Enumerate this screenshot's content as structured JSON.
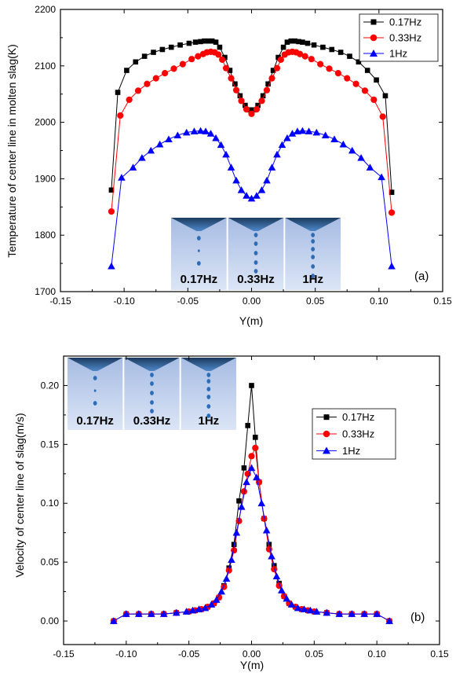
{
  "chart_data": [
    {
      "type": "scatter",
      "panel_label": "(a)",
      "xlabel": "Y(m)",
      "ylabel": "Temperature of center line in molten slag(K)",
      "xlim": [
        -0.15,
        0.15
      ],
      "ylim": [
        1700,
        2200
      ],
      "xticks": [
        -0.15,
        -0.1,
        -0.05,
        0.0,
        0.05,
        0.1,
        0.15
      ],
      "xtick_labels": [
        "-0.15",
        "-0.10",
        "-0.05",
        "0.00",
        "0.05",
        "0.10",
        "0.15"
      ],
      "yticks": [
        1700,
        1800,
        1900,
        2000,
        2100,
        2200
      ],
      "ytick_labels": [
        "1700",
        "1800",
        "1900",
        "2000",
        "2100",
        "2200"
      ],
      "legend_position": "top-right",
      "grid": false,
      "inset_labels": [
        "0.17Hz",
        "0.33Hz",
        "1Hz"
      ],
      "series": [
        {
          "name": "0.17Hz",
          "color": "#000000",
          "marker": "square",
          "x": [
            -0.11,
            -0.105,
            -0.098,
            -0.091,
            -0.084,
            -0.077,
            -0.07,
            -0.063,
            -0.056,
            -0.049,
            -0.044,
            -0.04,
            -0.037,
            -0.034,
            -0.031,
            -0.028,
            -0.025,
            -0.021,
            -0.017,
            -0.013,
            -0.009,
            -0.005,
            -0.002,
            0.002,
            0.005,
            0.009,
            0.013,
            0.017,
            0.021,
            0.025,
            0.028,
            0.031,
            0.034,
            0.037,
            0.04,
            0.044,
            0.049,
            0.056,
            0.063,
            0.07,
            0.077,
            0.084,
            0.091,
            0.098,
            0.105,
            0.11
          ],
          "y": [
            1880,
            2053,
            2092,
            2107,
            2117,
            2124,
            2129,
            2133,
            2137,
            2140,
            2142,
            2143,
            2144,
            2144,
            2144,
            2142,
            2133,
            2115,
            2092,
            2068,
            2047,
            2030,
            2022,
            2022,
            2030,
            2047,
            2068,
            2092,
            2115,
            2133,
            2142,
            2144,
            2144,
            2143,
            2142,
            2140,
            2137,
            2133,
            2129,
            2124,
            2117,
            2107,
            2092,
            2075,
            2047,
            1876
          ]
        },
        {
          "name": "0.33Hz",
          "color": "#ff0000",
          "marker": "circle",
          "x": [
            -0.11,
            -0.103,
            -0.096,
            -0.089,
            -0.082,
            -0.075,
            -0.068,
            -0.061,
            -0.054,
            -0.047,
            -0.042,
            -0.038,
            -0.035,
            -0.032,
            -0.029,
            -0.026,
            -0.023,
            -0.02,
            -0.016,
            -0.012,
            -0.008,
            -0.004,
            0.0,
            0.004,
            0.008,
            0.012,
            0.016,
            0.02,
            0.023,
            0.026,
            0.029,
            0.032,
            0.035,
            0.038,
            0.042,
            0.047,
            0.054,
            0.061,
            0.068,
            0.075,
            0.082,
            0.089,
            0.096,
            0.103,
            0.11
          ],
          "y": [
            1842,
            2012,
            2040,
            2056,
            2068,
            2078,
            2087,
            2095,
            2103,
            2112,
            2117,
            2121,
            2124,
            2125,
            2124,
            2120,
            2111,
            2096,
            2078,
            2057,
            2038,
            2023,
            2015,
            2023,
            2038,
            2057,
            2078,
            2096,
            2111,
            2120,
            2124,
            2125,
            2124,
            2121,
            2117,
            2112,
            2103,
            2095,
            2087,
            2078,
            2068,
            2056,
            2040,
            2010,
            1840
          ]
        },
        {
          "name": "1Hz",
          "color": "#0000ff",
          "marker": "triangle",
          "x": [
            -0.11,
            -0.102,
            -0.093,
            -0.086,
            -0.079,
            -0.072,
            -0.065,
            -0.058,
            -0.051,
            -0.045,
            -0.04,
            -0.036,
            -0.032,
            -0.028,
            -0.024,
            -0.02,
            -0.016,
            -0.012,
            -0.008,
            -0.004,
            0.0,
            0.004,
            0.008,
            0.012,
            0.016,
            0.02,
            0.024,
            0.028,
            0.032,
            0.036,
            0.04,
            0.045,
            0.051,
            0.058,
            0.065,
            0.072,
            0.079,
            0.086,
            0.093,
            0.102,
            0.11
          ],
          "y": [
            1745,
            1902,
            1920,
            1937,
            1950,
            1961,
            1970,
            1977,
            1982,
            1984,
            1985,
            1984,
            1980,
            1972,
            1960,
            1943,
            1920,
            1897,
            1880,
            1870,
            1865,
            1870,
            1880,
            1897,
            1920,
            1943,
            1960,
            1972,
            1980,
            1984,
            1985,
            1984,
            1982,
            1977,
            1970,
            1961,
            1950,
            1937,
            1920,
            1903,
            1745
          ]
        }
      ]
    },
    {
      "type": "scatter",
      "panel_label": "(b)",
      "xlabel": "Y(m)",
      "ylabel": "Velocity of center line of slag(m/s)",
      "xlim": [
        -0.15,
        0.15
      ],
      "ylim": [
        -0.02,
        0.225
      ],
      "xticks": [
        -0.15,
        -0.1,
        -0.05,
        0.0,
        0.05,
        0.1,
        0.15
      ],
      "xtick_labels": [
        "-0.15",
        "-0.10",
        "-0.05",
        "0.00",
        "0.05",
        "0.10",
        "0.15"
      ],
      "yticks": [
        0.0,
        0.05,
        0.1,
        0.15,
        0.2
      ],
      "ytick_labels": [
        "0.00",
        "0.05",
        "0.10",
        "0.15",
        "0.20"
      ],
      "legend_position": "right",
      "grid": false,
      "inset_labels": [
        "0.17Hz",
        "0.33Hz",
        "1Hz"
      ],
      "series": [
        {
          "name": "0.17Hz",
          "color": "#000000",
          "marker": "square",
          "x": [
            -0.11,
            -0.1,
            -0.09,
            -0.08,
            -0.07,
            -0.06,
            -0.05,
            -0.045,
            -0.04,
            -0.035,
            -0.03,
            -0.026,
            -0.022,
            -0.018,
            -0.014,
            -0.01,
            -0.006,
            -0.003,
            0.0,
            0.003,
            0.006,
            0.01,
            0.014,
            0.018,
            0.022,
            0.026,
            0.03,
            0.035,
            0.04,
            0.045,
            0.05,
            0.06,
            0.07,
            0.08,
            0.09,
            0.1,
            0.11
          ],
          "y": [
            0.0,
            0.006,
            0.006,
            0.006,
            0.006,
            0.007,
            0.008,
            0.009,
            0.01,
            0.012,
            0.015,
            0.02,
            0.03,
            0.045,
            0.065,
            0.102,
            0.13,
            0.166,
            0.2,
            0.156,
            0.118,
            0.087,
            0.065,
            0.047,
            0.032,
            0.021,
            0.015,
            0.012,
            0.01,
            0.009,
            0.008,
            0.007,
            0.006,
            0.006,
            0.006,
            0.006,
            0.0
          ]
        },
        {
          "name": "0.33Hz",
          "color": "#ff0000",
          "marker": "circle",
          "x": [
            -0.11,
            -0.1,
            -0.09,
            -0.08,
            -0.07,
            -0.06,
            -0.05,
            -0.045,
            -0.04,
            -0.035,
            -0.03,
            -0.026,
            -0.022,
            -0.018,
            -0.014,
            -0.01,
            -0.006,
            -0.003,
            0.0,
            0.003,
            0.006,
            0.01,
            0.014,
            0.018,
            0.022,
            0.026,
            0.03,
            0.035,
            0.04,
            0.045,
            0.05,
            0.06,
            0.07,
            0.08,
            0.09,
            0.1,
            0.11
          ],
          "y": [
            0.0,
            0.006,
            0.006,
            0.006,
            0.006,
            0.007,
            0.008,
            0.009,
            0.01,
            0.012,
            0.015,
            0.02,
            0.029,
            0.043,
            0.06,
            0.085,
            0.11,
            0.125,
            0.14,
            0.147,
            0.118,
            0.087,
            0.061,
            0.044,
            0.03,
            0.021,
            0.015,
            0.012,
            0.01,
            0.009,
            0.008,
            0.007,
            0.006,
            0.006,
            0.006,
            0.006,
            0.0
          ]
        },
        {
          "name": "1Hz",
          "color": "#0000ff",
          "marker": "triangle",
          "x": [
            -0.11,
            -0.1,
            -0.09,
            -0.08,
            -0.07,
            -0.06,
            -0.052,
            -0.047,
            -0.042,
            -0.037,
            -0.032,
            -0.028,
            -0.024,
            -0.02,
            -0.016,
            -0.012,
            -0.008,
            -0.004,
            0.0,
            0.004,
            0.008,
            0.012,
            0.016,
            0.02,
            0.024,
            0.028,
            0.032,
            0.037,
            0.042,
            0.047,
            0.052,
            0.06,
            0.07,
            0.08,
            0.09,
            0.1,
            0.11
          ],
          "y": [
            0.0,
            0.006,
            0.006,
            0.006,
            0.006,
            0.007,
            0.008,
            0.009,
            0.01,
            0.011,
            0.014,
            0.018,
            0.025,
            0.036,
            0.052,
            0.075,
            0.097,
            0.118,
            0.13,
            0.122,
            0.1,
            0.077,
            0.055,
            0.038,
            0.026,
            0.019,
            0.014,
            0.011,
            0.01,
            0.009,
            0.008,
            0.007,
            0.006,
            0.006,
            0.006,
            0.006,
            0.0
          ]
        }
      ]
    }
  ]
}
